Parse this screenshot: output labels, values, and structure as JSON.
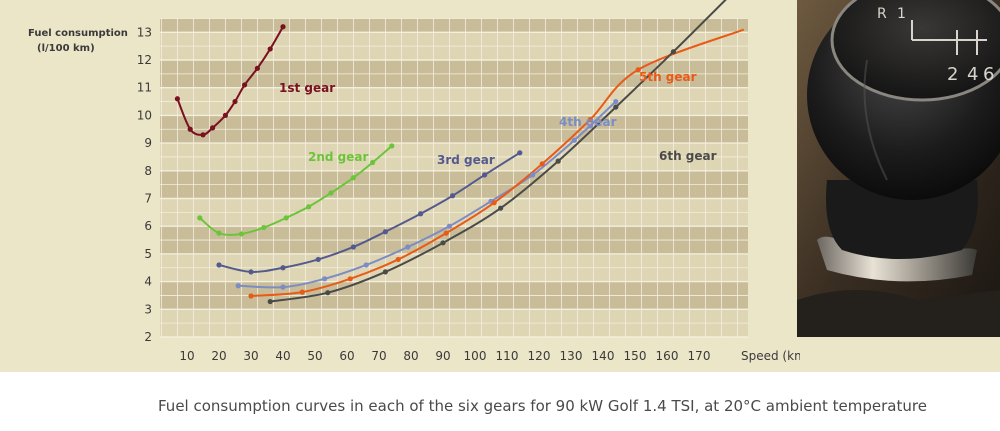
{
  "caption": "Fuel consumption curves in each of the six gears for 90 kW Golf 1.4 TSI, at 20°C ambient temperature",
  "chart_data": {
    "type": "line",
    "ylabel_line1": "Fuel consumption",
    "ylabel_line2": "(l/100 km)",
    "xlabel": "Speed (km/h)",
    "xlim": [
      0,
      180
    ],
    "ylim": [
      2,
      13.5
    ],
    "x_ticks": [
      10,
      20,
      30,
      40,
      50,
      60,
      70,
      80,
      90,
      100,
      110,
      120,
      130,
      140,
      150,
      160,
      170
    ],
    "y_ticks": [
      2,
      3,
      4,
      5,
      6,
      7,
      8,
      9,
      10,
      11,
      12,
      13
    ],
    "grid": true,
    "series": [
      {
        "name": "1st gear",
        "color": "#7a1020",
        "points": [
          [
            7,
            10.6
          ],
          [
            11,
            9.5
          ],
          [
            15,
            9.3
          ],
          [
            18,
            9.55
          ],
          [
            22,
            10
          ],
          [
            25,
            10.5
          ],
          [
            28,
            11.1
          ],
          [
            32,
            11.7
          ],
          [
            36,
            12.4
          ],
          [
            40,
            13.2
          ]
        ]
      },
      {
        "name": "2nd gear",
        "color": "#6cc43a",
        "points": [
          [
            14,
            6.3
          ],
          [
            20,
            5.75
          ],
          [
            27,
            5.72
          ],
          [
            34,
            5.95
          ],
          [
            41,
            6.3
          ],
          [
            48,
            6.7
          ],
          [
            55,
            7.2
          ],
          [
            62,
            7.75
          ],
          [
            68,
            8.3
          ],
          [
            74,
            8.9
          ]
        ]
      },
      {
        "name": "3rd gear",
        "color": "#555a8e",
        "points": [
          [
            20,
            4.6
          ],
          [
            30,
            4.35
          ],
          [
            40,
            4.5
          ],
          [
            51,
            4.8
          ],
          [
            62,
            5.25
          ],
          [
            72,
            5.8
          ],
          [
            83,
            6.45
          ],
          [
            93,
            7.1
          ],
          [
            103,
            7.85
          ],
          [
            114,
            8.65
          ]
        ]
      },
      {
        "name": "4th gear",
        "color": "#7c8cc4",
        "points": [
          [
            26,
            3.85
          ],
          [
            40,
            3.8
          ],
          [
            53,
            4.1
          ],
          [
            66,
            4.6
          ],
          [
            79,
            5.25
          ],
          [
            92,
            6.0
          ],
          [
            105,
            6.9
          ],
          [
            118,
            7.85
          ],
          [
            131,
            9.1
          ],
          [
            144,
            10.5
          ]
        ]
      },
      {
        "name": "5th gear",
        "color": "#e85a18",
        "points": [
          [
            30,
            3.48
          ],
          [
            46,
            3.62
          ],
          [
            61,
            4.1
          ],
          [
            76,
            4.8
          ],
          [
            91,
            5.75
          ],
          [
            106,
            6.85
          ],
          [
            121,
            8.25
          ],
          [
            136,
            9.85
          ],
          [
            151,
            11.65
          ]
        ]
      },
      {
        "name": "6th gear",
        "color": "#4a4a48",
        "points": [
          [
            36,
            3.28
          ],
          [
            54,
            3.6
          ],
          [
            72,
            4.35
          ],
          [
            90,
            5.4
          ],
          [
            108,
            6.65
          ],
          [
            126,
            8.35
          ],
          [
            144,
            10.3
          ],
          [
            162,
            12.3
          ]
        ]
      }
    ]
  }
}
